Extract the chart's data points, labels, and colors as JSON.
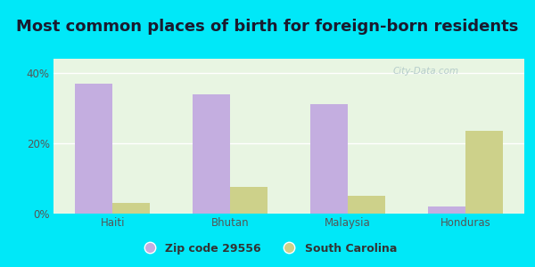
{
  "title": "Most common places of birth for foreign-born residents",
  "categories": [
    "Haiti",
    "Bhutan",
    "Malaysia",
    "Honduras"
  ],
  "zip_values": [
    37.0,
    34.0,
    31.0,
    2.0
  ],
  "sc_values": [
    3.0,
    7.5,
    5.0,
    23.5
  ],
  "zip_color": "#c4aee0",
  "sc_color": "#cdd18a",
  "ylim": [
    0,
    44
  ],
  "yticks": [
    0,
    20,
    40
  ],
  "ytick_labels": [
    "0%",
    "20%",
    "40%"
  ],
  "legend_zip": "Zip code 29556",
  "legend_sc": "South Carolina",
  "plot_bg_top": "#e8f5e2",
  "plot_bg_bottom": "#f0faf0",
  "outer_background": "#00e8f8",
  "bar_width": 0.32,
  "title_fontsize": 13,
  "tick_fontsize": 8.5,
  "legend_fontsize": 9,
  "watermark_text": "City-Data.com"
}
